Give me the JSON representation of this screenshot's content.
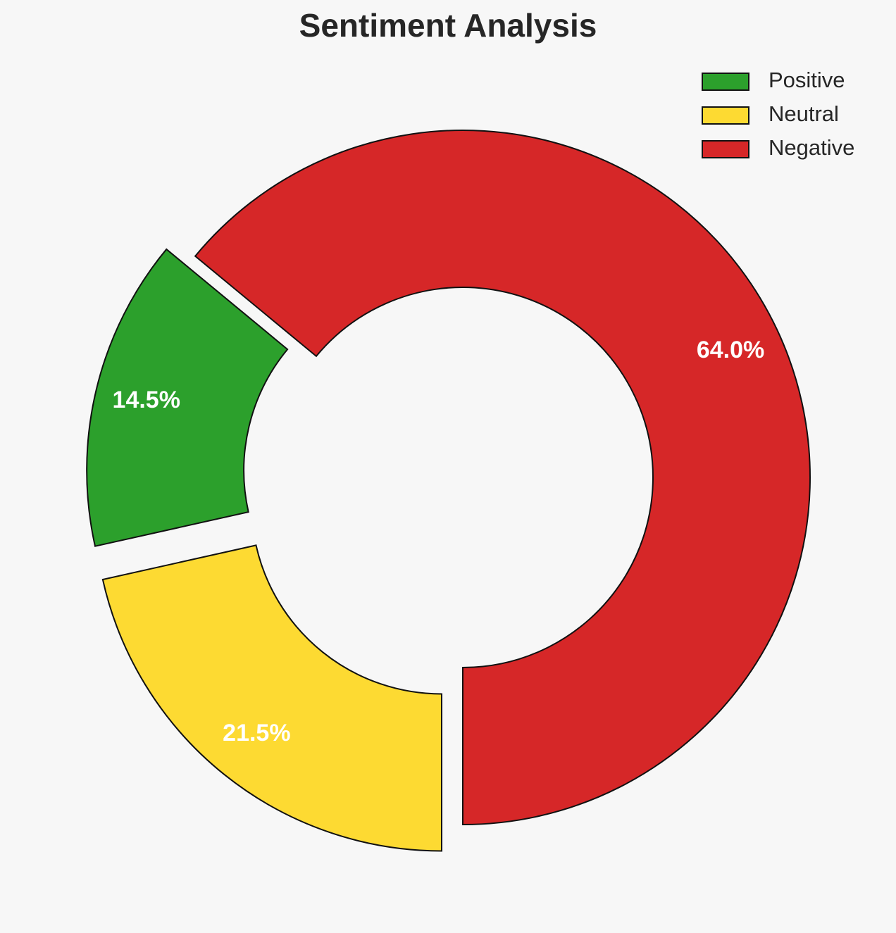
{
  "chart_data": {
    "type": "donut",
    "title": "Sentiment Analysis",
    "categories": [
      "Positive",
      "Neutral",
      "Negative"
    ],
    "values": [
      14.5,
      21.5,
      64.0
    ],
    "value_labels": [
      "14.5%",
      "21.5%",
      "64.0%"
    ],
    "colors": [
      "#2ca02c",
      "#fdda32",
      "#d62728"
    ],
    "legend": "upper right"
  }
}
